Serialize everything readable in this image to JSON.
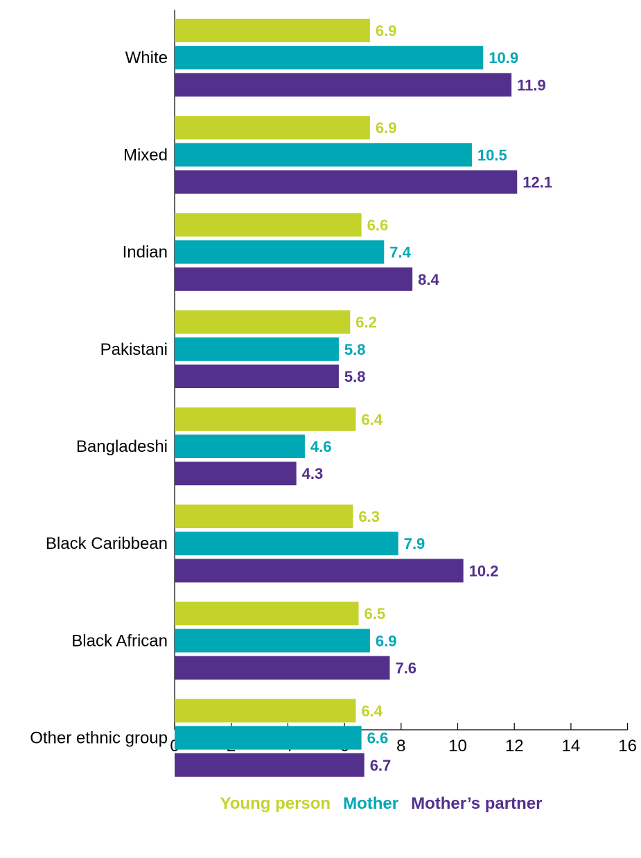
{
  "chart_data": {
    "type": "bar",
    "orientation": "horizontal",
    "categories": [
      "White",
      "Mixed",
      "Indian",
      "Pakistani",
      "Bangladeshi",
      "Black Caribbean",
      "Black African",
      "Other ethnic group"
    ],
    "series": [
      {
        "name": "Young person",
        "color": "#c3d32b",
        "values": [
          6.9,
          6.9,
          6.6,
          6.2,
          6.4,
          6.3,
          6.5,
          6.4
        ]
      },
      {
        "name": "Mother",
        "color": "#00a7b5",
        "values": [
          10.9,
          10.5,
          7.4,
          5.8,
          4.6,
          7.9,
          6.9,
          6.6
        ]
      },
      {
        "name": "Mother’s partner",
        "color": "#54308d",
        "values": [
          11.9,
          12.1,
          8.4,
          5.8,
          4.3,
          10.2,
          7.6,
          6.7
        ]
      }
    ],
    "xlim": [
      0,
      16
    ],
    "xticks": [
      0,
      2,
      4,
      6,
      8,
      10,
      12,
      14,
      16
    ],
    "title": "",
    "xlabel": "",
    "ylabel": "",
    "grid": false,
    "legend_position": "bottom"
  }
}
